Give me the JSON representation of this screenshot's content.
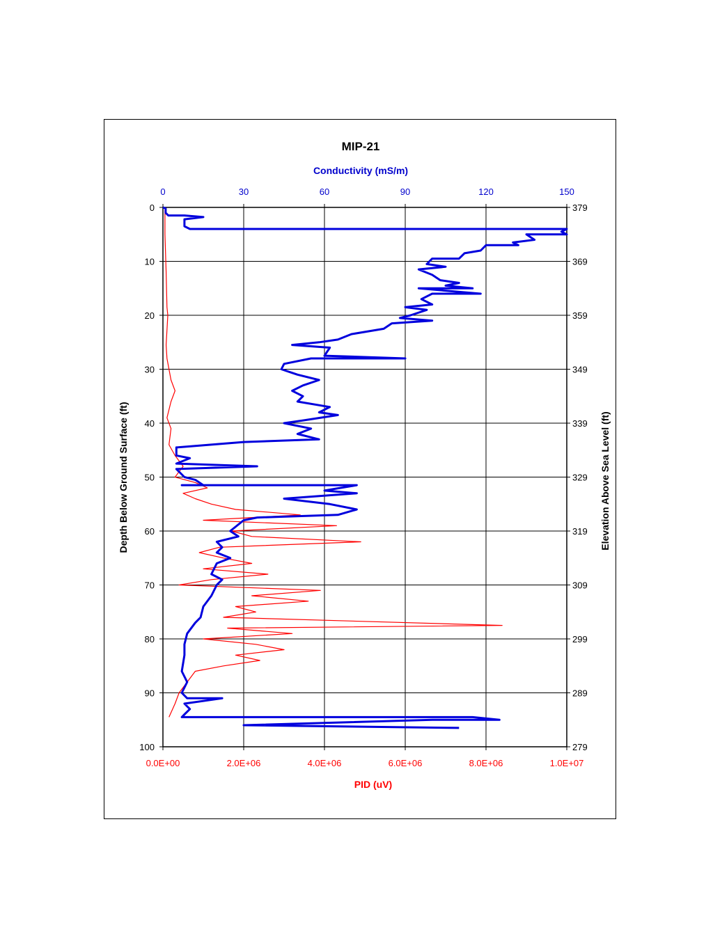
{
  "chart_data": {
    "type": "line",
    "title": "MIP-21",
    "top_axis": {
      "label": "Conductivity (mS/m)",
      "min": 0,
      "max": 150,
      "ticks": [
        "0",
        "30",
        "60",
        "90",
        "120",
        "150"
      ],
      "color": "#0000cc"
    },
    "bottom_axis": {
      "label": "PID (uV)",
      "min": 0,
      "max": 10000000,
      "ticks": [
        "0.0E+00",
        "2.0E+06",
        "4.0E+06",
        "6.0E+06",
        "8.0E+06",
        "1.0E+07"
      ],
      "color": "#ff0000"
    },
    "left_axis": {
      "label": "Depth Below Ground Surface (ft)",
      "min": 0,
      "max": 100,
      "ticks": [
        "0",
        "10",
        "20",
        "30",
        "40",
        "50",
        "60",
        "70",
        "80",
        "90",
        "100"
      ]
    },
    "right_axis": {
      "label": "Elevation Above Sea Level (ft)",
      "ticks": [
        "379",
        "369",
        "359",
        "349",
        "339",
        "329",
        "319",
        "309",
        "299",
        "289",
        "279"
      ]
    },
    "grid": true,
    "series": [
      {
        "color": "#0000dd",
        "axis": "top",
        "points": [
          [
            0,
            0
          ],
          [
            1,
            0.2
          ],
          [
            1,
            1
          ],
          [
            2,
            1.5
          ],
          [
            8,
            1.5
          ],
          [
            15,
            1.8
          ],
          [
            8,
            2.2
          ],
          [
            8,
            3.5
          ],
          [
            10,
            4
          ],
          [
            150,
            4
          ],
          [
            148,
            4.5
          ],
          [
            150,
            5
          ],
          [
            135,
            5
          ],
          [
            138,
            6
          ],
          [
            130,
            6.5
          ],
          [
            132,
            7
          ],
          [
            120,
            7
          ],
          [
            118,
            8
          ],
          [
            112,
            8.5
          ],
          [
            110,
            9.5
          ],
          [
            100,
            9.5
          ],
          [
            98,
            10.5
          ],
          [
            105,
            11
          ],
          [
            95,
            11.5
          ],
          [
            100,
            12.5
          ],
          [
            103,
            13.5
          ],
          [
            110,
            14
          ],
          [
            105,
            14.5
          ],
          [
            115,
            15
          ],
          [
            95,
            15
          ],
          [
            118,
            16
          ],
          [
            100,
            16
          ],
          [
            96,
            17
          ],
          [
            100,
            18
          ],
          [
            90,
            18.5
          ],
          [
            98,
            19
          ],
          [
            92,
            20
          ],
          [
            88,
            20.5
          ],
          [
            100,
            21
          ],
          [
            85,
            21.5
          ],
          [
            82,
            22.5
          ],
          [
            70,
            23.5
          ],
          [
            65,
            24.5
          ],
          [
            58,
            25
          ],
          [
            48,
            25.5
          ],
          [
            62,
            26
          ],
          [
            60,
            27.5
          ],
          [
            90,
            28
          ],
          [
            55,
            28
          ],
          [
            45,
            29
          ],
          [
            44,
            30
          ],
          [
            47,
            30.5
          ],
          [
            50,
            31
          ],
          [
            58,
            32
          ],
          [
            52,
            33
          ],
          [
            48,
            34
          ],
          [
            52,
            35
          ],
          [
            50,
            36
          ],
          [
            62,
            37
          ],
          [
            58,
            38
          ],
          [
            65,
            38.5
          ],
          [
            52,
            39.5
          ],
          [
            45,
            40
          ],
          [
            55,
            41
          ],
          [
            50,
            42
          ],
          [
            58,
            43
          ],
          [
            30,
            43.5
          ],
          [
            5,
            44.5
          ],
          [
            5,
            46
          ],
          [
            10,
            46.5
          ],
          [
            5,
            47.5
          ],
          [
            35,
            48
          ],
          [
            5,
            48.5
          ],
          [
            8,
            50
          ],
          [
            12,
            50.5
          ],
          [
            15,
            51.5
          ],
          [
            7,
            51.5
          ],
          [
            72,
            51.5
          ],
          [
            60,
            52.5
          ],
          [
            72,
            53
          ],
          [
            45,
            54
          ],
          [
            62,
            55
          ],
          [
            72,
            56
          ],
          [
            65,
            57
          ],
          [
            35,
            57.5
          ],
          [
            30,
            58
          ],
          [
            25,
            60
          ],
          [
            28,
            61
          ],
          [
            20,
            62
          ],
          [
            22,
            63
          ],
          [
            20,
            64
          ],
          [
            25,
            65
          ],
          [
            20,
            66
          ],
          [
            18,
            68
          ],
          [
            22,
            69
          ],
          [
            20,
            70
          ],
          [
            18,
            72
          ],
          [
            15,
            74
          ],
          [
            14,
            76
          ],
          [
            12,
            77
          ],
          [
            9,
            79
          ],
          [
            8,
            81
          ],
          [
            8,
            83
          ],
          [
            7,
            86
          ],
          [
            9,
            88
          ],
          [
            7,
            90
          ],
          [
            9,
            91
          ],
          [
            22,
            91
          ],
          [
            8,
            92
          ],
          [
            10,
            93
          ],
          [
            8,
            94
          ],
          [
            7,
            94.5
          ],
          [
            115,
            94.5
          ],
          [
            125,
            95
          ],
          [
            100,
            95
          ],
          [
            30,
            96
          ],
          [
            110,
            96.5
          ]
        ]
      },
      {
        "color": "#ff0000",
        "axis": "bottom",
        "points": [
          [
            50000,
            0.5
          ],
          [
            50000,
            5
          ],
          [
            80000,
            12
          ],
          [
            100000,
            18.5
          ],
          [
            120000,
            20
          ],
          [
            80000,
            25.5
          ],
          [
            100000,
            28
          ],
          [
            200000,
            32
          ],
          [
            300000,
            34
          ],
          [
            200000,
            36
          ],
          [
            100000,
            39
          ],
          [
            200000,
            41
          ],
          [
            150000,
            44
          ],
          [
            300000,
            46
          ],
          [
            500000,
            48
          ],
          [
            300000,
            50
          ],
          [
            800000,
            51
          ],
          [
            1100000,
            52
          ],
          [
            500000,
            53
          ],
          [
            800000,
            54
          ],
          [
            1200000,
            55
          ],
          [
            1800000,
            56
          ],
          [
            3400000,
            57
          ],
          [
            1000000,
            58
          ],
          [
            4300000,
            59
          ],
          [
            1700000,
            60
          ],
          [
            2200000,
            61
          ],
          [
            4900000,
            62
          ],
          [
            1400000,
            63
          ],
          [
            900000,
            64
          ],
          [
            1500000,
            65
          ],
          [
            2200000,
            66
          ],
          [
            1000000,
            67
          ],
          [
            2600000,
            68
          ],
          [
            1200000,
            69
          ],
          [
            400000,
            70
          ],
          [
            3900000,
            71
          ],
          [
            2200000,
            72
          ],
          [
            3600000,
            73
          ],
          [
            1800000,
            74
          ],
          [
            2300000,
            75
          ],
          [
            1500000,
            76
          ],
          [
            8400000,
            77.5
          ],
          [
            1600000,
            78
          ],
          [
            3200000,
            79
          ],
          [
            1000000,
            80
          ],
          [
            2300000,
            81
          ],
          [
            3000000,
            82
          ],
          [
            1800000,
            83
          ],
          [
            2400000,
            84
          ],
          [
            1500000,
            85
          ],
          [
            800000,
            86
          ],
          [
            600000,
            88
          ],
          [
            400000,
            90
          ],
          [
            300000,
            92
          ],
          [
            150000,
            94.5
          ]
        ]
      }
    ]
  }
}
